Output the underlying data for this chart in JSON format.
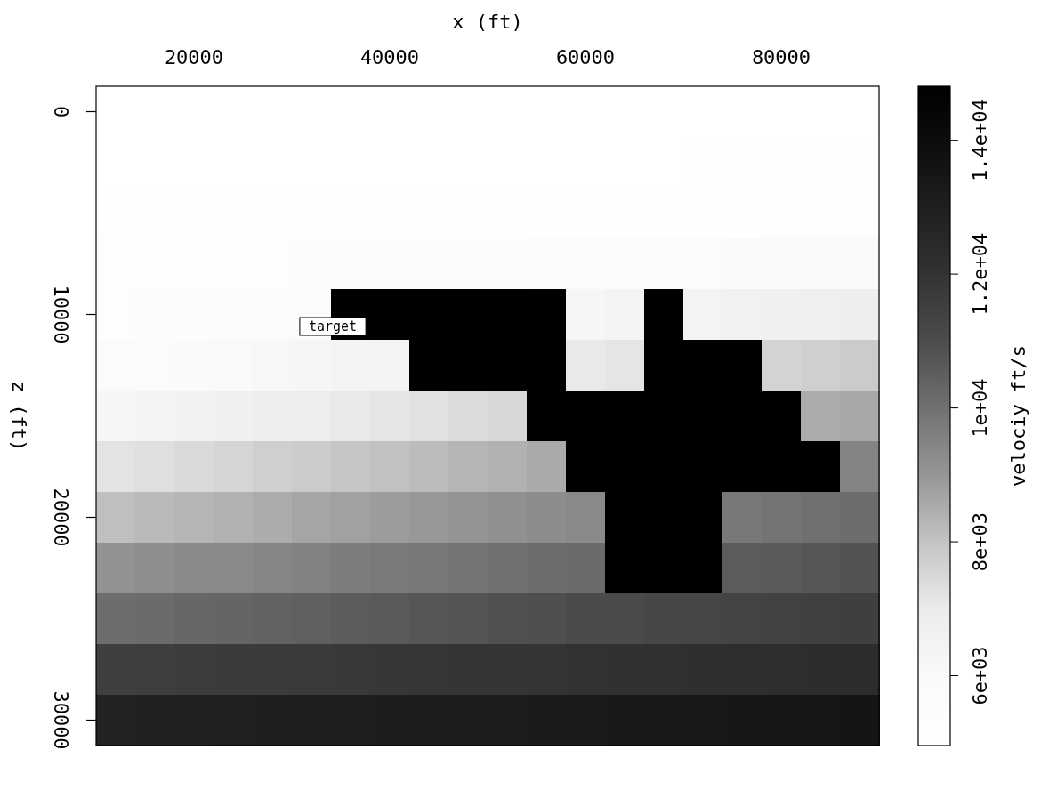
{
  "chart_data": {
    "type": "heatmap",
    "xlabel": "x (ft)",
    "ylabel": "z (ft)",
    "clabel": "velociy ft/s",
    "clim": [
      4950,
      14800
    ],
    "cticks": [
      {
        "value": 6000,
        "label": "6e+03"
      },
      {
        "value": 8000,
        "label": "8e+03"
      },
      {
        "value": 10000,
        "label": "1e+04"
      },
      {
        "value": 12000,
        "label": "1.2e+04"
      },
      {
        "value": 14000,
        "label": "1.4e+04"
      }
    ],
    "annotations": [
      "target"
    ],
    "categories": [
      null,
      null,
      "20000",
      null,
      null,
      null,
      null,
      "40000",
      null,
      null,
      null,
      null,
      "60000",
      null,
      null,
      null,
      null,
      "80000",
      null,
      null
    ],
    "y_categories": [
      "0",
      null,
      null,
      null,
      "10000",
      null,
      null,
      null,
      "20000",
      null,
      null,
      null,
      "30000"
    ],
    "cells": [
      [
        5000,
        5000,
        5000,
        5000,
        5000,
        5000,
        5000,
        5000,
        5000,
        5000,
        5000,
        5000,
        5000,
        5000,
        5000,
        5000,
        5000,
        5000,
        5000,
        5000
      ],
      [
        5000,
        5000,
        5000,
        5000,
        5000,
        5000,
        5000,
        5000,
        5000,
        5000,
        5050,
        5050,
        5050,
        5050,
        5050,
        5100,
        5100,
        5100,
        5100,
        5100
      ],
      [
        5100,
        5100,
        5100,
        5150,
        5150,
        5150,
        5150,
        5150,
        5200,
        5200,
        5200,
        5200,
        5250,
        5250,
        5250,
        5250,
        5250,
        5300,
        5300,
        5300
      ],
      [
        5300,
        5350,
        5350,
        5400,
        5450,
        5500,
        5500,
        5550,
        5600,
        5650,
        5650,
        5700,
        5750,
        5800,
        5800,
        5850,
        5900,
        5950,
        5950,
        6000
      ],
      [
        5450,
        5500,
        5600,
        5650,
        5750,
        5800,
        14800,
        14800,
        14800,
        14800,
        14800,
        14800,
        6300,
        6400,
        14800,
        6500,
        6600,
        6650,
        6750,
        6800
      ],
      [
        5750,
        5850,
        5950,
        6050,
        6200,
        6300,
        6400,
        6500,
        14800,
        14800,
        14800,
        14800,
        7050,
        7150,
        14800,
        14800,
        14800,
        7600,
        7700,
        7800
      ],
      [
        6300,
        6400,
        6550,
        6650,
        6800,
        6900,
        7050,
        7150,
        7250,
        7400,
        7500,
        14800,
        14800,
        14800,
        14800,
        14800,
        14800,
        14800,
        8500,
        8600
      ],
      [
        7200,
        7300,
        7450,
        7550,
        7700,
        7800,
        7950,
        8050,
        8150,
        8300,
        8400,
        8550,
        14800,
        14800,
        14800,
        14800,
        14800,
        14800,
        14800,
        9500
      ],
      [
        8100,
        8200,
        8300,
        8400,
        8500,
        8650,
        8750,
        8850,
        8950,
        9050,
        9150,
        9250,
        9350,
        14800,
        14800,
        14800,
        9800,
        9900,
        10000,
        10100
      ],
      [
        9100,
        9200,
        9300,
        9350,
        9450,
        9550,
        9650,
        9750,
        9800,
        9900,
        10000,
        10100,
        10150,
        14800,
        14800,
        14800,
        10550,
        10600,
        10700,
        10800
      ],
      [
        10100,
        10150,
        10250,
        10300,
        10400,
        10450,
        10550,
        10600,
        10700,
        10750,
        10850,
        10900,
        11000,
        11050,
        11150,
        11200,
        11300,
        11350,
        11450,
        11500
      ],
      [
        11500,
        11550,
        11600,
        11650,
        11650,
        11700,
        11750,
        11800,
        11850,
        11900,
        11900,
        11950,
        12000,
        12050,
        12100,
        12150,
        12200,
        12200,
        12250,
        12300
      ],
      [
        12800,
        12850,
        12850,
        12900,
        12950,
        13000,
        13000,
        13050,
        13100,
        13150,
        13150,
        13200,
        13250,
        13300,
        13300,
        13350,
        13400,
        13450,
        13450,
        13500
      ]
    ]
  }
}
